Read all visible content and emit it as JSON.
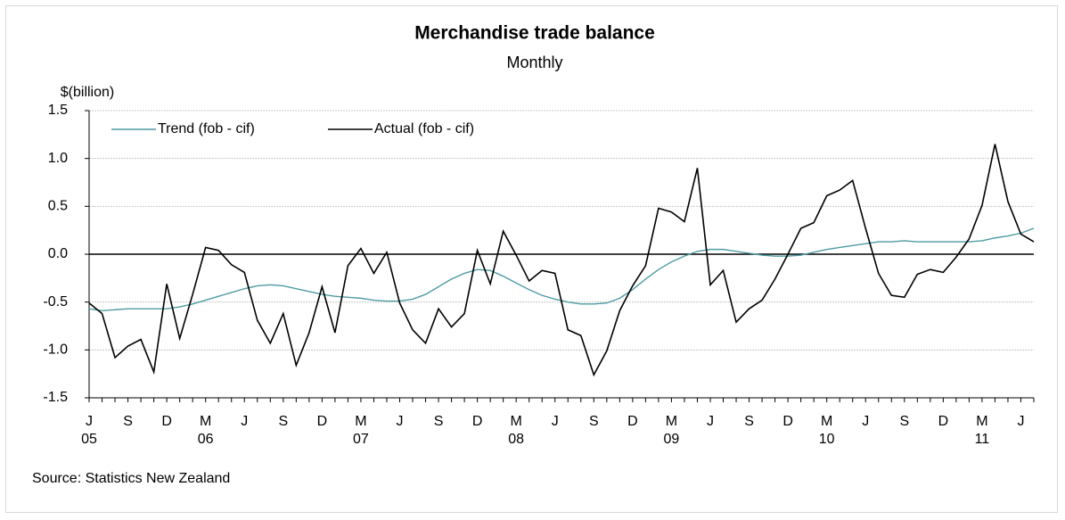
{
  "chart_data": {
    "type": "line",
    "title": "Merchandise trade balance",
    "subtitle": "Monthly",
    "y_label": "$(billion)",
    "source": "Source: Statistics New Zealand",
    "categories": [
      "J\n05",
      null,
      null,
      "S",
      null,
      null,
      "D",
      null,
      null,
      "M\n06",
      null,
      null,
      "J",
      null,
      null,
      "S",
      null,
      null,
      "D",
      null,
      null,
      "M\n07",
      null,
      null,
      "J",
      null,
      null,
      "S",
      null,
      null,
      "D",
      null,
      null,
      "M\n08",
      null,
      null,
      "J",
      null,
      null,
      "S",
      null,
      null,
      "D",
      null,
      null,
      "M\n09",
      null,
      null,
      "J",
      null,
      null,
      "S",
      null,
      null,
      "D",
      null,
      null,
      "M\n10",
      null,
      null,
      "J",
      null,
      null,
      "S",
      null,
      null,
      "D",
      null,
      null,
      "M\n11",
      null,
      null,
      "J",
      null
    ],
    "series": [
      {
        "name": "Trend (fob - cif)",
        "color": "#4f9ca3",
        "values": [
          -0.57,
          -0.59,
          -0.58,
          -0.57,
          -0.57,
          -0.57,
          -0.57,
          -0.55,
          -0.52,
          -0.48,
          -0.44,
          -0.4,
          -0.36,
          -0.33,
          -0.32,
          -0.33,
          -0.36,
          -0.39,
          -0.42,
          -0.44,
          -0.45,
          -0.46,
          -0.48,
          -0.49,
          -0.49,
          -0.47,
          -0.42,
          -0.34,
          -0.26,
          -0.2,
          -0.16,
          -0.17,
          -0.23,
          -0.3,
          -0.37,
          -0.43,
          -0.47,
          -0.5,
          -0.52,
          -0.52,
          -0.51,
          -0.46,
          -0.37,
          -0.26,
          -0.16,
          -0.08,
          -0.02,
          0.03,
          0.05,
          0.05,
          0.03,
          0.01,
          -0.01,
          -0.02,
          -0.02,
          -0.01,
          0.02,
          0.05,
          0.07,
          0.09,
          0.11,
          0.13,
          0.13,
          0.14,
          0.13,
          0.13,
          0.13,
          0.13,
          0.13,
          0.14,
          0.17,
          0.19,
          0.22,
          0.27
        ]
      },
      {
        "name": "Actual (fob - cif)",
        "color": "#000000",
        "values": [
          -0.51,
          -0.62,
          -1.08,
          -0.96,
          -0.89,
          -1.23,
          -0.31,
          -0.88,
          -0.42,
          0.07,
          0.04,
          -0.11,
          -0.19,
          -0.69,
          -0.93,
          -0.62,
          -1.16,
          -0.82,
          -0.34,
          -0.82,
          -0.12,
          0.06,
          -0.2,
          0.02,
          -0.51,
          -0.79,
          -0.93,
          -0.57,
          -0.76,
          -0.62,
          0.04,
          -0.31,
          0.24,
          -0.01,
          -0.28,
          -0.17,
          -0.2,
          -0.79,
          -0.85,
          -1.26,
          -1.01,
          -0.59,
          -0.33,
          -0.12,
          0.48,
          0.44,
          0.34,
          0.9,
          -0.32,
          -0.17,
          -0.71,
          -0.57,
          -0.48,
          -0.26,
          0.0,
          0.27,
          0.33,
          0.61,
          0.67,
          0.77,
          0.27,
          -0.2,
          -0.43,
          -0.45,
          -0.21,
          -0.16,
          -0.19,
          -0.03,
          0.16,
          0.51,
          1.15,
          0.55,
          0.21,
          0.13
        ]
      }
    ],
    "ylim": [
      -1.5,
      1.5
    ],
    "yticks": [
      {
        "value": -1.5,
        "label": "-1.5"
      },
      {
        "value": -1,
        "label": "-1.0"
      },
      {
        "value": -0.5,
        "label": "-0.5"
      },
      {
        "value": 0,
        "label": "0.0"
      },
      {
        "value": 0.5,
        "label": "0.5"
      },
      {
        "value": 1,
        "label": "1.0"
      },
      {
        "value": 1.5,
        "label": "1.5"
      }
    ],
    "grid": true,
    "legend": "top-left"
  }
}
